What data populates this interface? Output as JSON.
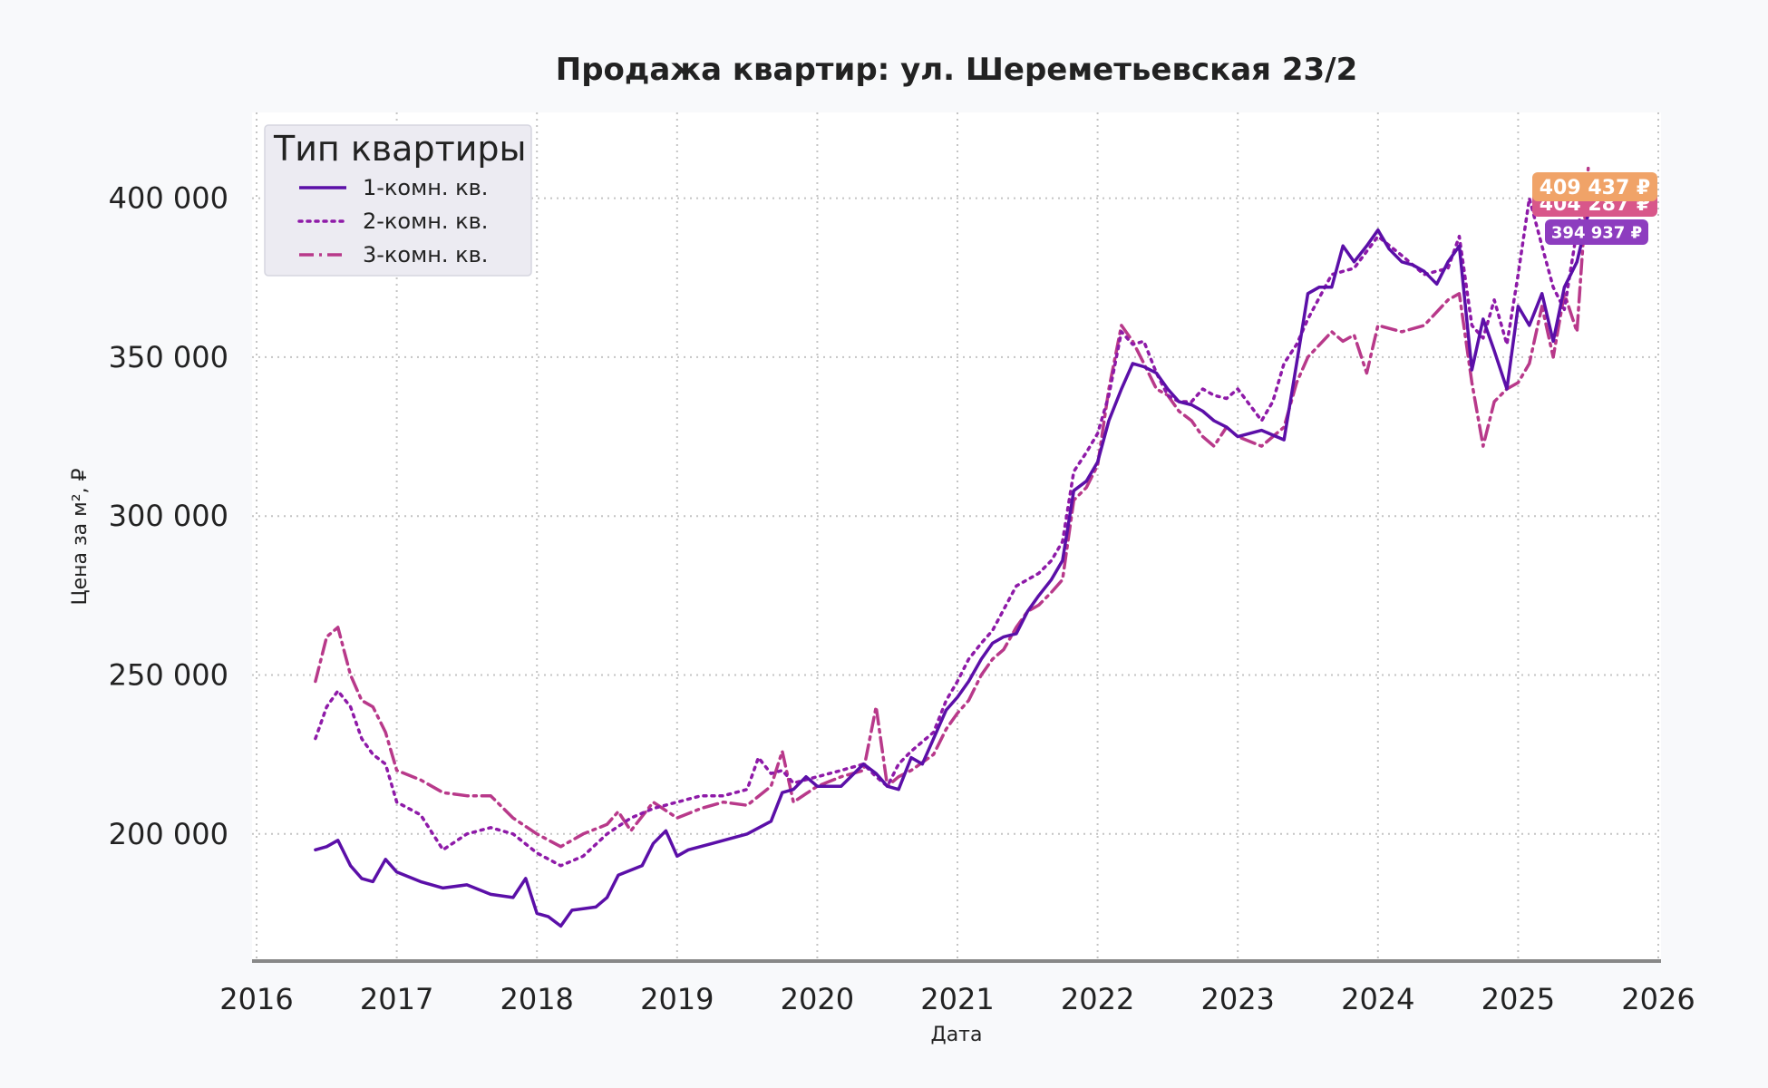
{
  "chart_data": {
    "type": "line",
    "title": "Продажа квартир: ул. Шереметьевская 23/2",
    "xlabel": "Дата",
    "ylabel": "Цена за м², ₽",
    "xlim": [
      2016,
      2026
    ],
    "ylim": [
      160000,
      427000
    ],
    "x_ticks": [
      "2016",
      "2017",
      "2018",
      "2019",
      "2020",
      "2021",
      "2022",
      "2023",
      "2024",
      "2025",
      "2026"
    ],
    "y_ticks": [
      "200 000",
      "250 000",
      "300 000",
      "350 000",
      "400 000"
    ],
    "grid": true,
    "legend": {
      "title": "Тип квартиры",
      "placement": "top-left"
    },
    "series": [
      {
        "name": "1-комн. кв.",
        "color": "#5b0fa8",
        "style": "solid",
        "points": [
          [
            2016.42,
            195000
          ],
          [
            2016.5,
            196000
          ],
          [
            2016.58,
            198000
          ],
          [
            2016.67,
            190000
          ],
          [
            2016.75,
            186000
          ],
          [
            2016.83,
            185000
          ],
          [
            2016.92,
            192000
          ],
          [
            2017.0,
            188000
          ],
          [
            2017.17,
            185000
          ],
          [
            2017.33,
            183000
          ],
          [
            2017.5,
            184000
          ],
          [
            2017.67,
            181000
          ],
          [
            2017.83,
            180000
          ],
          [
            2017.92,
            186000
          ],
          [
            2018.0,
            175000
          ],
          [
            2018.08,
            174000
          ],
          [
            2018.17,
            171000
          ],
          [
            2018.25,
            176000
          ],
          [
            2018.42,
            177000
          ],
          [
            2018.5,
            180000
          ],
          [
            2018.58,
            187000
          ],
          [
            2018.75,
            190000
          ],
          [
            2018.83,
            197000
          ],
          [
            2018.92,
            201000
          ],
          [
            2019.0,
            193000
          ],
          [
            2019.08,
            195000
          ],
          [
            2019.25,
            197000
          ],
          [
            2019.5,
            200000
          ],
          [
            2019.67,
            204000
          ],
          [
            2019.75,
            213000
          ],
          [
            2019.83,
            214000
          ],
          [
            2019.92,
            218000
          ],
          [
            2020.0,
            215000
          ],
          [
            2020.17,
            215000
          ],
          [
            2020.33,
            222000
          ],
          [
            2020.42,
            219000
          ],
          [
            2020.5,
            215000
          ],
          [
            2020.58,
            214000
          ],
          [
            2020.67,
            224000
          ],
          [
            2020.75,
            222000
          ],
          [
            2020.83,
            230000
          ],
          [
            2020.92,
            239000
          ],
          [
            2021.0,
            243000
          ],
          [
            2021.08,
            248000
          ],
          [
            2021.17,
            255000
          ],
          [
            2021.25,
            260000
          ],
          [
            2021.33,
            262000
          ],
          [
            2021.42,
            263000
          ],
          [
            2021.5,
            270000
          ],
          [
            2021.58,
            275000
          ],
          [
            2021.67,
            280000
          ],
          [
            2021.75,
            286000
          ],
          [
            2021.83,
            308000
          ],
          [
            2021.92,
            311000
          ],
          [
            2022.0,
            317000
          ],
          [
            2022.08,
            330000
          ],
          [
            2022.17,
            340000
          ],
          [
            2022.25,
            348000
          ],
          [
            2022.33,
            347000
          ],
          [
            2022.42,
            345000
          ],
          [
            2022.5,
            340000
          ],
          [
            2022.58,
            336000
          ],
          [
            2022.67,
            335000
          ],
          [
            2022.75,
            333000
          ],
          [
            2022.83,
            330000
          ],
          [
            2022.92,
            328000
          ],
          [
            2023.0,
            325000
          ],
          [
            2023.17,
            327000
          ],
          [
            2023.33,
            324000
          ],
          [
            2023.42,
            348000
          ],
          [
            2023.5,
            370000
          ],
          [
            2023.58,
            372000
          ],
          [
            2023.67,
            372000
          ],
          [
            2023.75,
            385000
          ],
          [
            2023.83,
            380000
          ],
          [
            2023.92,
            385000
          ],
          [
            2024.0,
            390000
          ],
          [
            2024.08,
            384000
          ],
          [
            2024.17,
            380000
          ],
          [
            2024.25,
            379000
          ],
          [
            2024.33,
            377000
          ],
          [
            2024.42,
            373000
          ],
          [
            2024.5,
            380000
          ],
          [
            2024.58,
            385000
          ],
          [
            2024.67,
            346000
          ],
          [
            2024.75,
            362000
          ],
          [
            2024.83,
            352000
          ],
          [
            2024.92,
            340000
          ],
          [
            2025.0,
            366000
          ],
          [
            2025.08,
            360000
          ],
          [
            2025.17,
            370000
          ],
          [
            2025.25,
            355000
          ],
          [
            2025.33,
            372000
          ],
          [
            2025.42,
            380000
          ],
          [
            2025.5,
            394937
          ]
        ]
      },
      {
        "name": "2-комн. кв.",
        "color": "#8e1aa8",
        "style": "dotted",
        "points": [
          [
            2016.42,
            230000
          ],
          [
            2016.5,
            240000
          ],
          [
            2016.58,
            245000
          ],
          [
            2016.67,
            240000
          ],
          [
            2016.75,
            230000
          ],
          [
            2016.83,
            225000
          ],
          [
            2016.92,
            222000
          ],
          [
            2017.0,
            210000
          ],
          [
            2017.17,
            206000
          ],
          [
            2017.33,
            195000
          ],
          [
            2017.5,
            200000
          ],
          [
            2017.67,
            202000
          ],
          [
            2017.83,
            200000
          ],
          [
            2018.0,
            194000
          ],
          [
            2018.17,
            190000
          ],
          [
            2018.33,
            193000
          ],
          [
            2018.5,
            200000
          ],
          [
            2018.67,
            205000
          ],
          [
            2018.83,
            208000
          ],
          [
            2019.0,
            210000
          ],
          [
            2019.17,
            212000
          ],
          [
            2019.33,
            212000
          ],
          [
            2019.5,
            214000
          ],
          [
            2019.58,
            224000
          ],
          [
            2019.67,
            219000
          ],
          [
            2019.75,
            220000
          ],
          [
            2019.83,
            216000
          ],
          [
            2020.0,
            218000
          ],
          [
            2020.17,
            220000
          ],
          [
            2020.33,
            222000
          ],
          [
            2020.42,
            218000
          ],
          [
            2020.5,
            215000
          ],
          [
            2020.58,
            222000
          ],
          [
            2020.67,
            226000
          ],
          [
            2020.83,
            232000
          ],
          [
            2020.92,
            242000
          ],
          [
            2021.0,
            248000
          ],
          [
            2021.08,
            255000
          ],
          [
            2021.17,
            260000
          ],
          [
            2021.25,
            264000
          ],
          [
            2021.42,
            278000
          ],
          [
            2021.58,
            282000
          ],
          [
            2021.67,
            286000
          ],
          [
            2021.75,
            292000
          ],
          [
            2021.83,
            314000
          ],
          [
            2021.92,
            320000
          ],
          [
            2022.0,
            326000
          ],
          [
            2022.08,
            338000
          ],
          [
            2022.17,
            358000
          ],
          [
            2022.25,
            354000
          ],
          [
            2022.33,
            355000
          ],
          [
            2022.42,
            345000
          ],
          [
            2022.5,
            338000
          ],
          [
            2022.58,
            336000
          ],
          [
            2022.67,
            336000
          ],
          [
            2022.75,
            340000
          ],
          [
            2022.83,
            338000
          ],
          [
            2022.92,
            337000
          ],
          [
            2023.0,
            340000
          ],
          [
            2023.17,
            330000
          ],
          [
            2023.25,
            336000
          ],
          [
            2023.33,
            348000
          ],
          [
            2023.42,
            354000
          ],
          [
            2023.5,
            362000
          ],
          [
            2023.67,
            376000
          ],
          [
            2023.83,
            378000
          ],
          [
            2024.0,
            388000
          ],
          [
            2024.17,
            382000
          ],
          [
            2024.33,
            376000
          ],
          [
            2024.5,
            378000
          ],
          [
            2024.58,
            388000
          ],
          [
            2024.67,
            360000
          ],
          [
            2024.75,
            356000
          ],
          [
            2024.83,
            368000
          ],
          [
            2024.92,
            354000
          ],
          [
            2025.0,
            376000
          ],
          [
            2025.08,
            400000
          ],
          [
            2025.17,
            385000
          ],
          [
            2025.25,
            372000
          ],
          [
            2025.33,
            365000
          ],
          [
            2025.42,
            390000
          ],
          [
            2025.5,
            404287
          ]
        ]
      },
      {
        "name": "3-комн. кв.",
        "color": "#b8398a",
        "style": "dashdot",
        "points": [
          [
            2016.42,
            248000
          ],
          [
            2016.5,
            262000
          ],
          [
            2016.58,
            265000
          ],
          [
            2016.67,
            250000
          ],
          [
            2016.75,
            242000
          ],
          [
            2016.83,
            240000
          ],
          [
            2016.92,
            232000
          ],
          [
            2017.0,
            220000
          ],
          [
            2017.17,
            217000
          ],
          [
            2017.33,
            213000
          ],
          [
            2017.5,
            212000
          ],
          [
            2017.67,
            212000
          ],
          [
            2017.83,
            205000
          ],
          [
            2018.0,
            200000
          ],
          [
            2018.17,
            196000
          ],
          [
            2018.33,
            200000
          ],
          [
            2018.5,
            203000
          ],
          [
            2018.58,
            207000
          ],
          [
            2018.67,
            201000
          ],
          [
            2018.83,
            210000
          ],
          [
            2019.0,
            205000
          ],
          [
            2019.17,
            208000
          ],
          [
            2019.33,
            210000
          ],
          [
            2019.5,
            209000
          ],
          [
            2019.67,
            215000
          ],
          [
            2019.75,
            226000
          ],
          [
            2019.83,
            210000
          ],
          [
            2020.0,
            215000
          ],
          [
            2020.17,
            218000
          ],
          [
            2020.33,
            220000
          ],
          [
            2020.42,
            240000
          ],
          [
            2020.5,
            215000
          ],
          [
            2020.58,
            218000
          ],
          [
            2020.67,
            220000
          ],
          [
            2020.83,
            225000
          ],
          [
            2020.92,
            233000
          ],
          [
            2021.0,
            238000
          ],
          [
            2021.08,
            242000
          ],
          [
            2021.17,
            250000
          ],
          [
            2021.25,
            255000
          ],
          [
            2021.33,
            258000
          ],
          [
            2021.42,
            265000
          ],
          [
            2021.5,
            270000
          ],
          [
            2021.58,
            272000
          ],
          [
            2021.67,
            276000
          ],
          [
            2021.75,
            280000
          ],
          [
            2021.83,
            305000
          ],
          [
            2021.92,
            309000
          ],
          [
            2022.0,
            316000
          ],
          [
            2022.08,
            340000
          ],
          [
            2022.17,
            360000
          ],
          [
            2022.25,
            355000
          ],
          [
            2022.33,
            348000
          ],
          [
            2022.42,
            340000
          ],
          [
            2022.5,
            338000
          ],
          [
            2022.58,
            333000
          ],
          [
            2022.67,
            330000
          ],
          [
            2022.75,
            325000
          ],
          [
            2022.83,
            322000
          ],
          [
            2022.92,
            328000
          ],
          [
            2023.0,
            325000
          ],
          [
            2023.17,
            322000
          ],
          [
            2023.33,
            328000
          ],
          [
            2023.42,
            342000
          ],
          [
            2023.5,
            350000
          ],
          [
            2023.67,
            358000
          ],
          [
            2023.75,
            355000
          ],
          [
            2023.83,
            357000
          ],
          [
            2023.92,
            345000
          ],
          [
            2024.0,
            360000
          ],
          [
            2024.17,
            358000
          ],
          [
            2024.33,
            360000
          ],
          [
            2024.5,
            368000
          ],
          [
            2024.58,
            370000
          ],
          [
            2024.67,
            342000
          ],
          [
            2024.75,
            322000
          ],
          [
            2024.83,
            336000
          ],
          [
            2024.92,
            340000
          ],
          [
            2025.0,
            342000
          ],
          [
            2025.08,
            348000
          ],
          [
            2025.17,
            366000
          ],
          [
            2025.25,
            350000
          ],
          [
            2025.33,
            370000
          ],
          [
            2025.42,
            358000
          ],
          [
            2025.5,
            409437
          ]
        ]
      }
    ],
    "end_labels": [
      {
        "series": "3-комн. кв.",
        "text": "409 437 ₽",
        "value": 409437,
        "color": "#f0a368"
      },
      {
        "series": "2-комн. кв.",
        "text": "404 287 ₽",
        "value": 404287,
        "color": "#d8578a"
      },
      {
        "series": "1-комн. кв.",
        "text": "394 937 ₽",
        "value": 394937,
        "color": "#8d3dbf"
      }
    ]
  }
}
